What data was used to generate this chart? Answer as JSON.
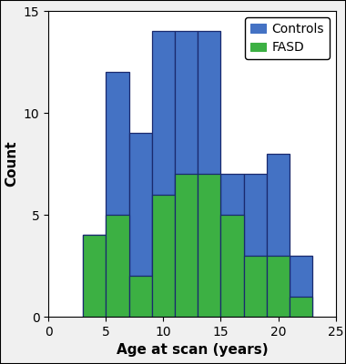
{
  "bin_edges": [
    3,
    5,
    7,
    9,
    11,
    13,
    15,
    17,
    19,
    21,
    23
  ],
  "controls_total": [
    4,
    12,
    9,
    14,
    14,
    14,
    7,
    7,
    8,
    3
  ],
  "fasd_counts": [
    4,
    5,
    2,
    6,
    7,
    7,
    5,
    3,
    3,
    1
  ],
  "controls_color": "#4472C4",
  "fasd_color": "#3CB043",
  "controls_label": "Controls",
  "fasd_label": "FASD",
  "xlabel": "Age at scan (years)",
  "ylabel": "Count",
  "xlim": [
    0,
    25
  ],
  "ylim": [
    0,
    15
  ],
  "xticks": [
    0,
    5,
    10,
    15,
    20,
    25
  ],
  "yticks": [
    0,
    5,
    10,
    15
  ],
  "bar_edgecolor": "#1a2a6e",
  "bar_linewidth": 0.9,
  "legend_loc": "upper right",
  "xlabel_fontsize": 11,
  "ylabel_fontsize": 11,
  "tick_fontsize": 10,
  "legend_fontsize": 10,
  "fig_facecolor": "#f0f0f0",
  "axes_facecolor": "#ffffff"
}
